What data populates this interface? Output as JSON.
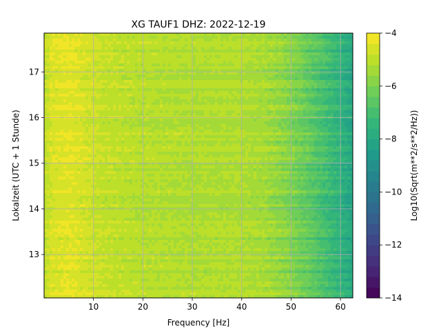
{
  "chart_data": {
    "type": "heatmap",
    "title": "XG TAUF1  DHZ: 2022-12-19",
    "xlabel": "Frequency [Hz]",
    "ylabel": "Lokalzeit (UTC + 1 Stunde)",
    "xlim": [
      0,
      62.5
    ],
    "ylim": [
      17.85,
      12.05
    ],
    "x_ticks": [
      10,
      20,
      30,
      40,
      50,
      60
    ],
    "y_ticks": [
      13,
      14,
      15,
      16,
      17
    ],
    "grid": true,
    "colorbar": {
      "label": "Log10(Sqrt(m**2/s**2/Hz))",
      "range": [
        -14,
        -4
      ],
      "ticks": [
        -4,
        -6,
        -8,
        -10,
        -12,
        -14
      ],
      "colormap": "viridis",
      "levels": 25
    },
    "levels_along_frequency": [
      {
        "hz": 0,
        "value": -5.0
      },
      {
        "hz": 1.5,
        "value": -4.6
      },
      {
        "hz": 5,
        "value": -4.4
      },
      {
        "hz": 12,
        "value": -4.9
      },
      {
        "hz": 20,
        "value": -5.1
      },
      {
        "hz": 30,
        "value": -5.2
      },
      {
        "hz": 40,
        "value": -5.2
      },
      {
        "hz": 45,
        "value": -5.4
      },
      {
        "hz": 50,
        "value": -5.9
      },
      {
        "hz": 55,
        "value": -6.7
      },
      {
        "hz": 60,
        "value": -7.6
      },
      {
        "hz": 62.5,
        "value": -8.1
      }
    ],
    "tick_labels": {
      "x": [
        "10",
        "20",
        "30",
        "40",
        "50",
        "60"
      ],
      "y": [
        "13",
        "14",
        "15",
        "16",
        "17"
      ],
      "colorbar": [
        "−4",
        "−6",
        "−8",
        "−10",
        "−12",
        "−14"
      ]
    }
  }
}
